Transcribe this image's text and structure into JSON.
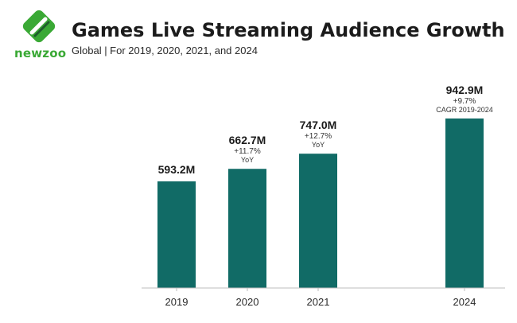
{
  "brand": {
    "logo_text": "newzoo",
    "logo_green": "#3aa935",
    "logo_dark": "#1e5e2b"
  },
  "header": {
    "title": "Games Live Streaming Audience Growth",
    "subtitle": "Global | For 2019, 2020, 2021, and 2024"
  },
  "chart_data": {
    "type": "bar",
    "categories": [
      "2019",
      "2020",
      "2021",
      "2024"
    ],
    "values": [
      593.2,
      662.7,
      747.0,
      942.9
    ],
    "value_labels": [
      "593.2M",
      "662.7M",
      "747.0M",
      "942.9M"
    ],
    "growth_labels": [
      "",
      "+11.7%",
      "+12.7%",
      "+9.7%"
    ],
    "growth_notes": [
      "",
      "YoY",
      "YoY",
      "CAGR 2019-2024"
    ],
    "title": "Games Live Streaming Audience Growth",
    "xlabel": "",
    "ylabel": "",
    "ylim": [
      0,
      1000
    ],
    "grid": false,
    "bar_color": "#116b66"
  }
}
